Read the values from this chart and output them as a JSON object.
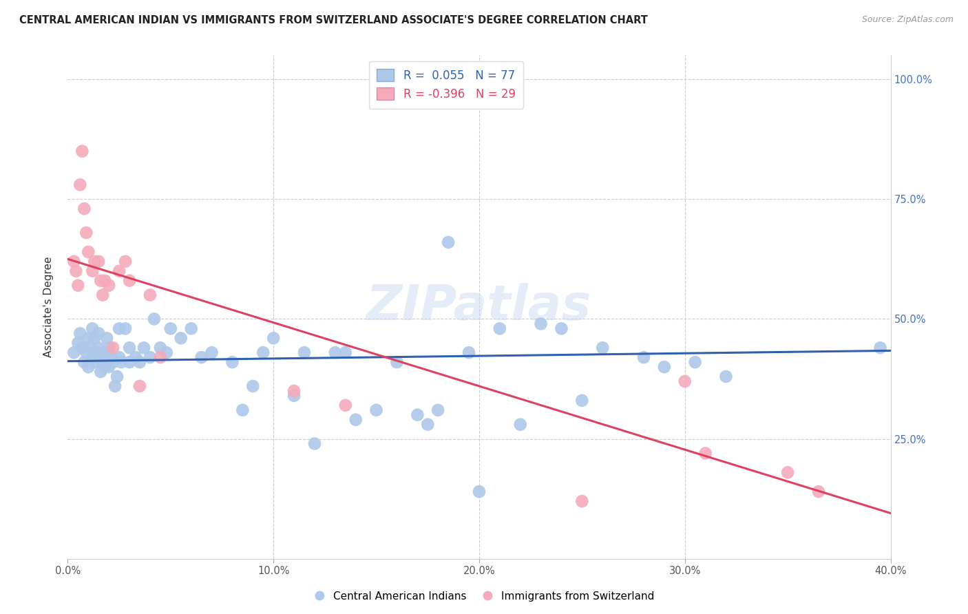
{
  "title": "CENTRAL AMERICAN INDIAN VS IMMIGRANTS FROM SWITZERLAND ASSOCIATE'S DEGREE CORRELATION CHART",
  "source": "Source: ZipAtlas.com",
  "ylabel": "Associate's Degree",
  "xlim": [
    0.0,
    0.4
  ],
  "ylim": [
    0.0,
    1.05
  ],
  "xtick_labels": [
    "0.0%",
    "",
    "10.0%",
    "",
    "20.0%",
    "",
    "30.0%",
    "",
    "40.0%"
  ],
  "xtick_values": [
    0.0,
    0.05,
    0.1,
    0.15,
    0.2,
    0.25,
    0.3,
    0.35,
    0.4
  ],
  "ytick_labels": [
    "25.0%",
    "50.0%",
    "75.0%",
    "100.0%"
  ],
  "ytick_values": [
    0.25,
    0.5,
    0.75,
    1.0
  ],
  "blue_R": "0.055",
  "blue_N": 77,
  "pink_R": "-0.396",
  "pink_N": 29,
  "blue_color": "#adc8e8",
  "pink_color": "#f4aaba",
  "blue_line_color": "#3060b0",
  "pink_line_color": "#e04060",
  "right_tick_color": "#4472c4",
  "watermark": "ZIPatlas",
  "blue_points_x": [
    0.003,
    0.005,
    0.006,
    0.007,
    0.008,
    0.009,
    0.01,
    0.01,
    0.011,
    0.012,
    0.012,
    0.013,
    0.013,
    0.014,
    0.015,
    0.015,
    0.016,
    0.016,
    0.017,
    0.018,
    0.018,
    0.019,
    0.019,
    0.02,
    0.02,
    0.021,
    0.022,
    0.023,
    0.024,
    0.025,
    0.025,
    0.026,
    0.028,
    0.03,
    0.03,
    0.033,
    0.035,
    0.037,
    0.04,
    0.042,
    0.045,
    0.048,
    0.05,
    0.055,
    0.06,
    0.065,
    0.07,
    0.08,
    0.085,
    0.09,
    0.095,
    0.1,
    0.11,
    0.115,
    0.12,
    0.13,
    0.135,
    0.14,
    0.15,
    0.16,
    0.17,
    0.175,
    0.18,
    0.185,
    0.195,
    0.2,
    0.21,
    0.22,
    0.23,
    0.24,
    0.25,
    0.26,
    0.28,
    0.29,
    0.305,
    0.32,
    0.395
  ],
  "blue_points_y": [
    0.43,
    0.45,
    0.47,
    0.44,
    0.41,
    0.43,
    0.4,
    0.46,
    0.44,
    0.42,
    0.48,
    0.41,
    0.46,
    0.43,
    0.44,
    0.47,
    0.39,
    0.42,
    0.41,
    0.4,
    0.42,
    0.43,
    0.46,
    0.4,
    0.44,
    0.42,
    0.41,
    0.36,
    0.38,
    0.42,
    0.48,
    0.41,
    0.48,
    0.41,
    0.44,
    0.42,
    0.41,
    0.44,
    0.42,
    0.5,
    0.44,
    0.43,
    0.48,
    0.46,
    0.48,
    0.42,
    0.43,
    0.41,
    0.31,
    0.36,
    0.43,
    0.46,
    0.34,
    0.43,
    0.24,
    0.43,
    0.43,
    0.29,
    0.31,
    0.41,
    0.3,
    0.28,
    0.31,
    0.66,
    0.43,
    0.14,
    0.48,
    0.28,
    0.49,
    0.48,
    0.33,
    0.44,
    0.42,
    0.4,
    0.41,
    0.38,
    0.44
  ],
  "pink_points_x": [
    0.003,
    0.004,
    0.005,
    0.006,
    0.007,
    0.008,
    0.009,
    0.01,
    0.012,
    0.013,
    0.015,
    0.016,
    0.017,
    0.018,
    0.02,
    0.022,
    0.025,
    0.028,
    0.03,
    0.035,
    0.04,
    0.045,
    0.11,
    0.135,
    0.25,
    0.3,
    0.31,
    0.35,
    0.365
  ],
  "pink_points_y": [
    0.62,
    0.6,
    0.57,
    0.78,
    0.85,
    0.73,
    0.68,
    0.64,
    0.6,
    0.62,
    0.62,
    0.58,
    0.55,
    0.58,
    0.57,
    0.44,
    0.6,
    0.62,
    0.58,
    0.36,
    0.55,
    0.42,
    0.35,
    0.32,
    0.12,
    0.37,
    0.22,
    0.18,
    0.14
  ],
  "blue_trend_x": [
    0.0,
    0.4
  ],
  "blue_trend_y": [
    0.412,
    0.434
  ],
  "pink_trend_x": [
    0.0,
    0.4
  ],
  "pink_trend_y": [
    0.625,
    0.095
  ]
}
